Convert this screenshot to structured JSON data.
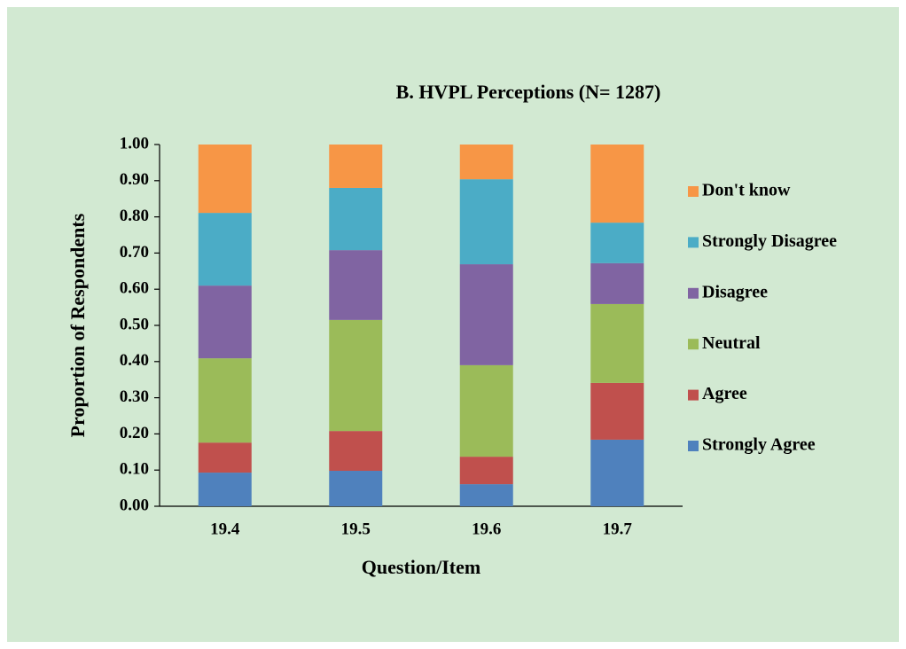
{
  "chart_data": {
    "type": "stacked_bar",
    "title": "B.  HVPL Perceptions (N= 1287)",
    "x_label": "Question/Item",
    "y_label": "Proportion of Respondents",
    "categories": [
      "19.4",
      "19.5",
      "19.6",
      "19.7"
    ],
    "series": [
      {
        "name": "Strongly Agree",
        "color": "#4f81bd",
        "values": [
          0.093,
          0.098,
          0.061,
          0.184
        ]
      },
      {
        "name": "Agree",
        "color": "#c0504d",
        "values": [
          0.083,
          0.11,
          0.076,
          0.157
        ]
      },
      {
        "name": "Neutral",
        "color": "#9bbb59",
        "values": [
          0.233,
          0.307,
          0.253,
          0.218
        ]
      },
      {
        "name": "Disagree",
        "color": "#8064a2",
        "values": [
          0.201,
          0.193,
          0.279,
          0.113
        ]
      },
      {
        "name": "Strongly Disagree",
        "color": "#4bacc6",
        "values": [
          0.201,
          0.172,
          0.235,
          0.112
        ]
      },
      {
        "name": "Don't know",
        "color": "#f79646",
        "values": [
          0.189,
          0.12,
          0.096,
          0.216
        ]
      }
    ],
    "ylim": [
      0,
      1
    ],
    "yticks": [
      {
        "value": 0,
        "label": "0.00"
      },
      {
        "value": 0.1,
        "label": "0.10"
      },
      {
        "value": 0.2,
        "label": "0.20"
      },
      {
        "value": 0.3,
        "label": "0.30"
      },
      {
        "value": 0.4,
        "label": "0.40"
      },
      {
        "value": 0.5,
        "label": "0.50"
      },
      {
        "value": 0.6,
        "label": "0.60"
      },
      {
        "value": 0.7,
        "label": "0.70"
      },
      {
        "value": 0.8,
        "label": "0.80"
      },
      {
        "value": 0.9,
        "label": "0.90"
      },
      {
        "value": 1,
        "label": "1.00"
      }
    ],
    "legend": "right"
  }
}
